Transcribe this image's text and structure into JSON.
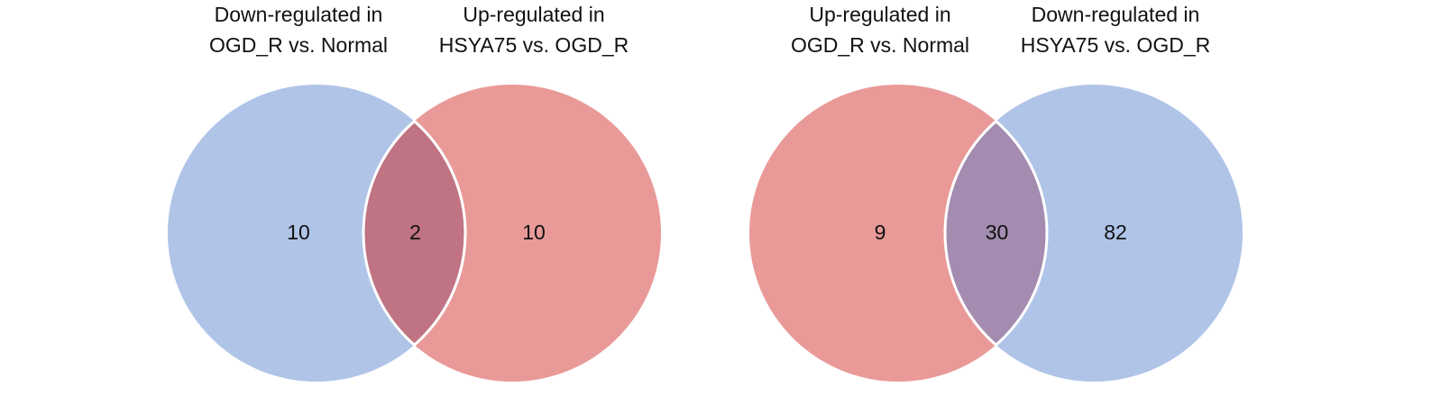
{
  "chart_data": [
    {
      "type": "venn",
      "sets": [
        {
          "name": [
            "Down-regulated in",
            "OGD_R vs. Normal"
          ],
          "color": "#b0c4e8"
        },
        {
          "name": [
            "Up-regulated in",
            "HSYA75 vs. OGD_R"
          ],
          "color": "#e99a98"
        }
      ],
      "overlap_color": "#c07383",
      "values": [
        10,
        2,
        10
      ]
    },
    {
      "type": "venn",
      "sets": [
        {
          "name": [
            "Up-regulated in",
            "OGD_R vs. Normal"
          ],
          "color": "#e99a98"
        },
        {
          "name": [
            "Down-regulated in",
            "HSYA75 vs. OGD_R"
          ],
          "color": "#b0c4e8"
        }
      ],
      "overlap_color": "#a38caf",
      "values": [
        9,
        30,
        82
      ]
    }
  ]
}
